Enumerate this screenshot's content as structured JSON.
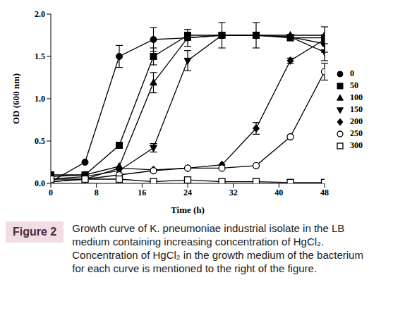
{
  "chart_data": {
    "type": "line",
    "x_label": "Time (h)",
    "y_label": "OD (600 nm)",
    "x": [
      0,
      6,
      12,
      18,
      24,
      30,
      36,
      42,
      48
    ],
    "xlim": [
      0,
      48
    ],
    "xticks": [
      0,
      8,
      16,
      24,
      32,
      40,
      48
    ],
    "ylim": [
      0,
      2
    ],
    "yticks": [
      {
        "value": 0,
        "label": "0.0"
      },
      {
        "value": 0.5,
        "label": "0.5"
      },
      {
        "value": 1,
        "label": "1.0"
      },
      {
        "value": 1.5,
        "label": "1.5"
      },
      {
        "value": 2,
        "label": "2.0"
      }
    ],
    "legend": "right",
    "grid": false,
    "series": [
      {
        "name": "0",
        "color": "#000000",
        "marker": "circle",
        "values": [
          0.02,
          0.25,
          1.5,
          1.7,
          1.72,
          1.75,
          1.75,
          1.73,
          1.65
        ],
        "errors": [
          null,
          null,
          0.13,
          0.14,
          0.1,
          null,
          null,
          null,
          null
        ]
      },
      {
        "name": "50",
        "color": "#000000",
        "marker": "square",
        "values": [
          0.1,
          0.1,
          0.45,
          1.5,
          1.75,
          1.75,
          1.75,
          1.72,
          1.72
        ],
        "errors": [
          null,
          null,
          null,
          0.1,
          null,
          0.15,
          0.15,
          null,
          null
        ]
      },
      {
        "name": "100",
        "color": "#000000",
        "marker": "triangle",
        "values": [
          0.08,
          0.1,
          0.2,
          1.19,
          1.72,
          1.75,
          1.75,
          1.75,
          1.75
        ],
        "errors": [
          null,
          null,
          null,
          0.12,
          null,
          null,
          null,
          null,
          null
        ]
      },
      {
        "name": "150",
        "color": "#000000",
        "marker": "triangle-down",
        "values": [
          0.05,
          0.08,
          0.15,
          0.42,
          1.45,
          1.75,
          1.75,
          1.73,
          1.55
        ],
        "errors": [
          null,
          null,
          null,
          0.05,
          0.12,
          null,
          null,
          null,
          0.1
        ]
      },
      {
        "name": "200",
        "color": "#000000",
        "marker": "diamond",
        "values": [
          0.02,
          0.05,
          0.18,
          0.16,
          0.18,
          0.22,
          0.65,
          1.45,
          1.7
        ],
        "errors": [
          null,
          null,
          null,
          null,
          null,
          null,
          0.07,
          0.03,
          0.15
        ]
      },
      {
        "name": "250",
        "color": "#000000",
        "marker": "circle-open",
        "values": [
          0.02,
          0.05,
          0.1,
          0.15,
          0.18,
          0.18,
          0.21,
          0.55,
          1.32
        ],
        "errors": [
          null,
          null,
          null,
          null,
          null,
          null,
          null,
          null,
          0.1
        ]
      },
      {
        "name": "300",
        "color": "#000000",
        "marker": "square-open",
        "values": [
          0.05,
          0.05,
          0.05,
          0.02,
          0.04,
          0.02,
          0.02,
          0.01,
          0.01
        ],
        "errors": [
          null,
          null,
          null,
          null,
          null,
          null,
          null,
          null,
          null
        ]
      }
    ]
  },
  "caption": {
    "label": "Figure 2",
    "text": "Growth curve of K. pneumoniae industrial isolate in the LB medium containing increasing concentration of HgCl₂. Concentration of HgCl₂ in the growth medium of the bacterium for each curve is mentioned to the right of the figure."
  }
}
